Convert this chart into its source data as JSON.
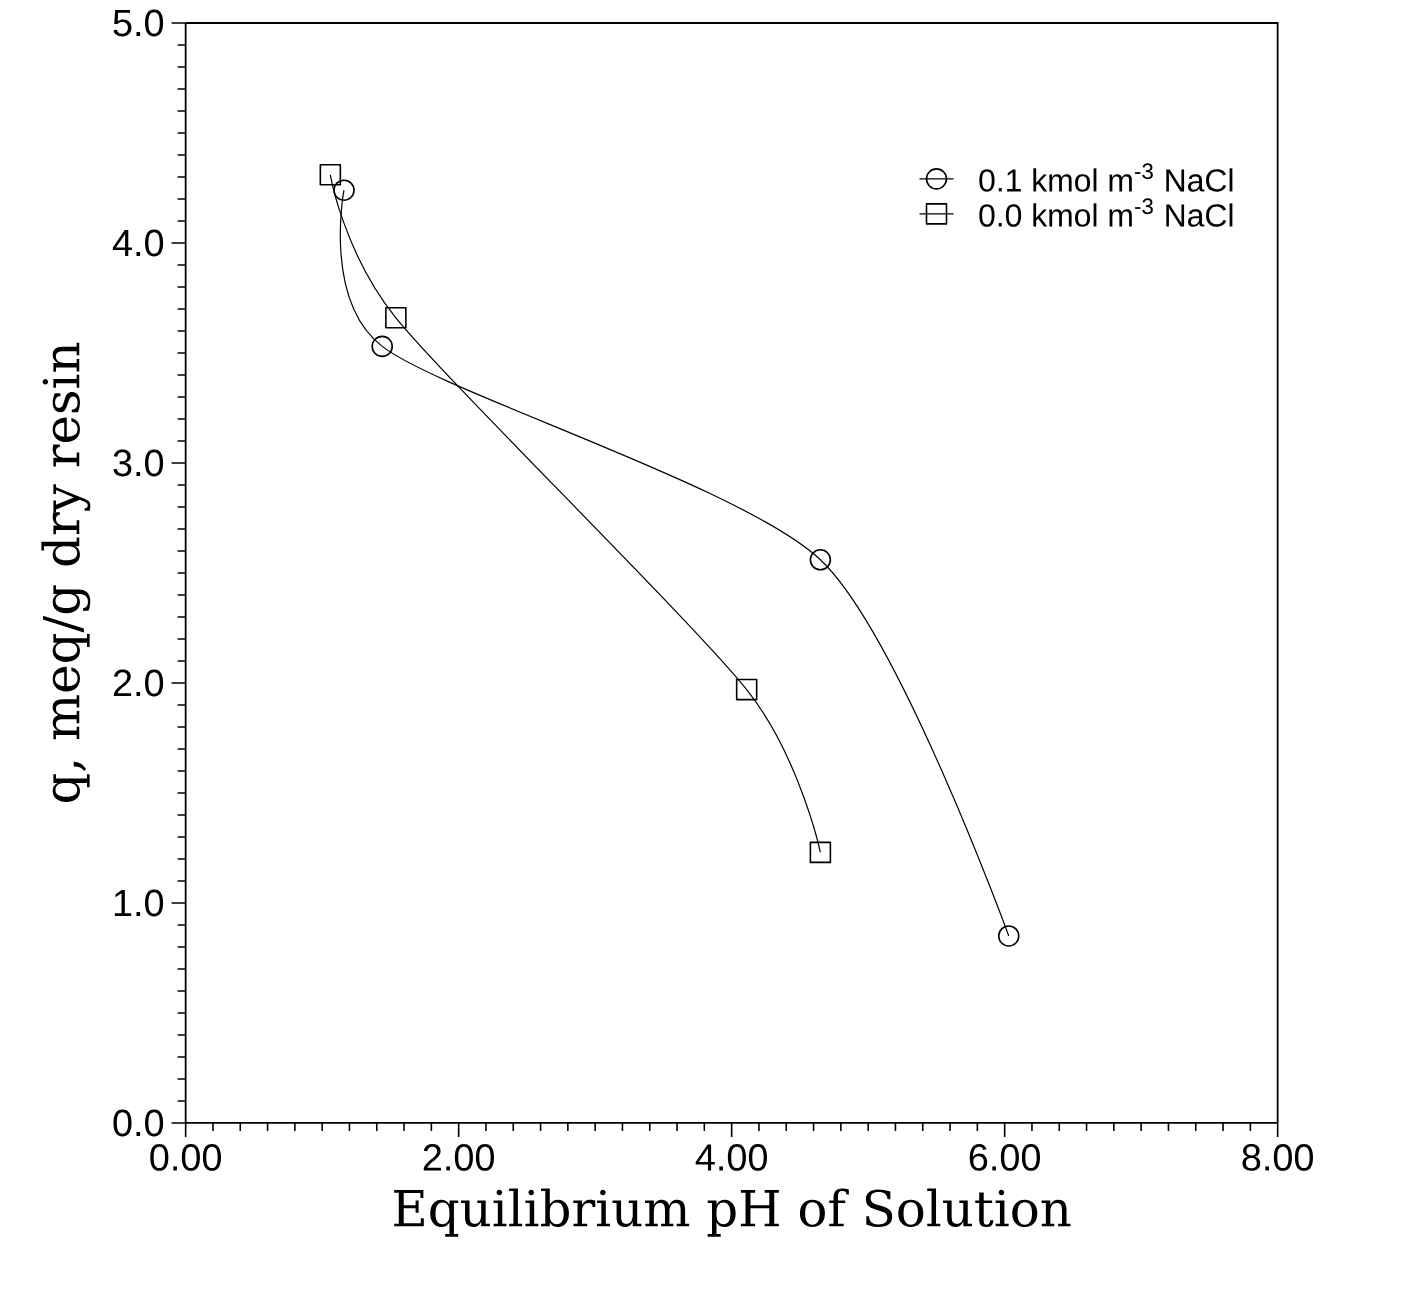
{
  "chart_data": {
    "type": "line",
    "xlabel": "Equilibrium pH of Solution",
    "ylabel": "q, meq/g dry resin",
    "xlim": [
      0,
      8
    ],
    "ylim": [
      0,
      5
    ],
    "xticks": [
      {
        "value": 0,
        "label": "0.00"
      },
      {
        "value": 2,
        "label": "2.00"
      },
      {
        "value": 4,
        "label": "4.00"
      },
      {
        "value": 6,
        "label": "6.00"
      },
      {
        "value": 8,
        "label": "8.00"
      }
    ],
    "yticks": [
      {
        "value": 0,
        "label": "0.0"
      },
      {
        "value": 1,
        "label": "1.0"
      },
      {
        "value": 2,
        "label": "2.0"
      },
      {
        "value": 3,
        "label": "3.0"
      },
      {
        "value": 4,
        "label": "4.0"
      },
      {
        "value": 5,
        "label": "5.0"
      }
    ],
    "series": [
      {
        "name": "0.1 kmol m$^{-3}$ NaCl",
        "color": "#000000",
        "marker": "circle",
        "x": [
          1.16,
          1.44,
          4.65,
          6.03
        ],
        "values": [
          4.24,
          3.53,
          2.56,
          0.85
        ]
      },
      {
        "name": "0.0 kmol m$^{-3}$ NaCl",
        "color": "#000000",
        "marker": "square",
        "x": [
          1.06,
          1.54,
          4.11,
          4.65
        ],
        "values": [
          4.31,
          3.66,
          1.97,
          1.23
        ]
      }
    ],
    "legend": "top right",
    "grid": false,
    "line_style": "solid"
  }
}
